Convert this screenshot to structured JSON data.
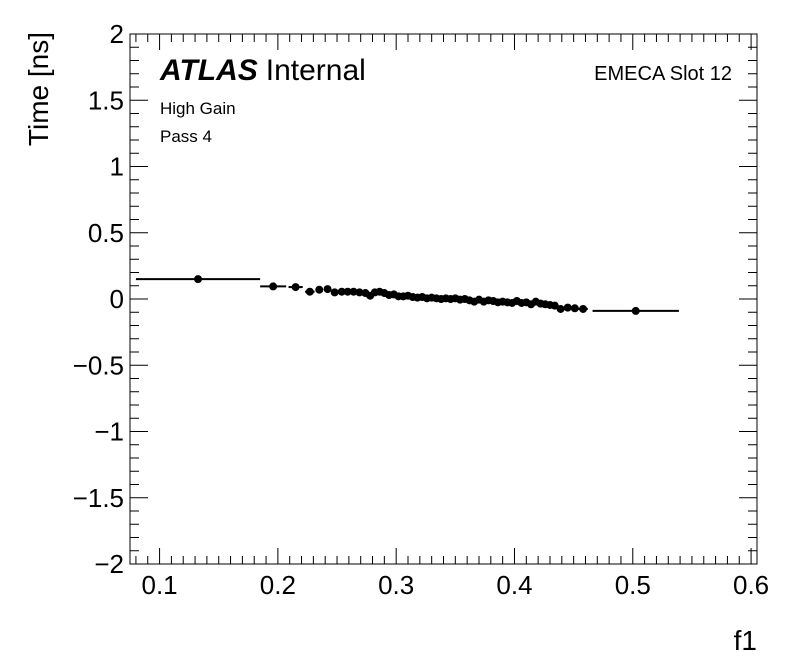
{
  "chart_data": {
    "type": "scatter",
    "title": "",
    "xlabel": "f1",
    "ylabel": "Time [ns]",
    "xlim": [
      0.075,
      0.605
    ],
    "ylim": [
      -2,
      2
    ],
    "x_ticks": [
      0.1,
      0.2,
      0.3,
      0.4,
      0.5,
      0.6
    ],
    "x_tick_labels": [
      "0.1",
      "0.2",
      "0.3",
      "0.4",
      "0.5",
      "0.6"
    ],
    "y_ticks": [
      2,
      1.5,
      1,
      0.5,
      0,
      -0.5,
      -1,
      -1.5,
      -2
    ],
    "y_tick_labels": [
      "2",
      "1.5",
      "1",
      "0.5",
      "0",
      "−0.5",
      "−1",
      "−1.5",
      "−2"
    ],
    "annotations": {
      "atlas": "ATLAS",
      "internal": "Internal",
      "gain": "High Gain",
      "pass": "Pass 4",
      "slot": "EMECA Slot 12"
    },
    "marker_color": "#000000",
    "grid": false,
    "series": [
      {
        "points": [
          {
            "x": 0.1325,
            "y": 0.15,
            "xerr": 0.0525
          },
          {
            "x": 0.196,
            "y": 0.095,
            "xerr": 0.011
          },
          {
            "x": 0.215,
            "y": 0.09,
            "xerr": 0.006
          },
          {
            "x": 0.227,
            "y": 0.055,
            "xerr": 0.004
          },
          {
            "x": 0.235,
            "y": 0.07,
            "xerr": 0.003
          },
          {
            "x": 0.242,
            "y": 0.075,
            "xerr": 0.003
          },
          {
            "x": 0.248,
            "y": 0.05,
            "xerr": 0.003
          },
          {
            "x": 0.254,
            "y": 0.055,
            "xerr": 0.003
          },
          {
            "x": 0.259,
            "y": 0.055,
            "xerr": 0.002
          },
          {
            "x": 0.264,
            "y": 0.055,
            "xerr": 0.002
          },
          {
            "x": 0.269,
            "y": 0.05,
            "xerr": 0.002
          },
          {
            "x": 0.274,
            "y": 0.045,
            "xerr": 0.002
          },
          {
            "x": 0.278,
            "y": 0.025,
            "xerr": 0.002
          },
          {
            "x": 0.282,
            "y": 0.05,
            "xerr": 0.002
          },
          {
            "x": 0.286,
            "y": 0.055,
            "xerr": 0.002
          },
          {
            "x": 0.29,
            "y": 0.045,
            "xerr": 0.002
          },
          {
            "x": 0.294,
            "y": 0.03,
            "xerr": 0.002
          },
          {
            "x": 0.298,
            "y": 0.035,
            "xerr": 0.002
          },
          {
            "x": 0.302,
            "y": 0.02,
            "xerr": 0.002
          },
          {
            "x": 0.306,
            "y": 0.02,
            "xerr": 0.002
          },
          {
            "x": 0.31,
            "y": 0.025,
            "xerr": 0.002
          },
          {
            "x": 0.314,
            "y": 0.015,
            "xerr": 0.002
          },
          {
            "x": 0.318,
            "y": 0.01,
            "xerr": 0.002
          },
          {
            "x": 0.322,
            "y": 0.015,
            "xerr": 0.002
          },
          {
            "x": 0.326,
            "y": 0.005,
            "xerr": 0.002
          },
          {
            "x": 0.33,
            "y": 0.01,
            "xerr": 0.002
          },
          {
            "x": 0.334,
            "y": 0.005,
            "xerr": 0.002
          },
          {
            "x": 0.338,
            "y": 0.0,
            "xerr": 0.002
          },
          {
            "x": 0.342,
            "y": 0.005,
            "xerr": 0.002
          },
          {
            "x": 0.346,
            "y": 0.0,
            "xerr": 0.002
          },
          {
            "x": 0.35,
            "y": 0.005,
            "xerr": 0.002
          },
          {
            "x": 0.354,
            "y": -0.005,
            "xerr": 0.002
          },
          {
            "x": 0.358,
            "y": 0.0,
            "xerr": 0.002
          },
          {
            "x": 0.362,
            "y": -0.01,
            "xerr": 0.002
          },
          {
            "x": 0.366,
            "y": -0.02,
            "xerr": 0.002
          },
          {
            "x": 0.37,
            "y": -0.005,
            "xerr": 0.002
          },
          {
            "x": 0.374,
            "y": -0.02,
            "xerr": 0.002
          },
          {
            "x": 0.378,
            "y": -0.01,
            "xerr": 0.002
          },
          {
            "x": 0.382,
            "y": -0.015,
            "xerr": 0.002
          },
          {
            "x": 0.386,
            "y": -0.025,
            "xerr": 0.002
          },
          {
            "x": 0.39,
            "y": -0.02,
            "xerr": 0.002
          },
          {
            "x": 0.394,
            "y": -0.025,
            "xerr": 0.002
          },
          {
            "x": 0.398,
            "y": -0.03,
            "xerr": 0.002
          },
          {
            "x": 0.402,
            "y": -0.015,
            "xerr": 0.002
          },
          {
            "x": 0.406,
            "y": -0.03,
            "xerr": 0.002
          },
          {
            "x": 0.41,
            "y": -0.025,
            "xerr": 0.002
          },
          {
            "x": 0.414,
            "y": -0.04,
            "xerr": 0.002
          },
          {
            "x": 0.418,
            "y": -0.02,
            "xerr": 0.002
          },
          {
            "x": 0.422,
            "y": -0.035,
            "xerr": 0.002
          },
          {
            "x": 0.426,
            "y": -0.04,
            "xerr": 0.002
          },
          {
            "x": 0.43,
            "y": -0.045,
            "xerr": 0.002
          },
          {
            "x": 0.434,
            "y": -0.05,
            "xerr": 0.002
          },
          {
            "x": 0.439,
            "y": -0.075,
            "xerr": 0.003
          },
          {
            "x": 0.445,
            "y": -0.065,
            "xerr": 0.003
          },
          {
            "x": 0.451,
            "y": -0.07,
            "xerr": 0.003
          },
          {
            "x": 0.458,
            "y": -0.075,
            "xerr": 0.004
          },
          {
            "x": 0.5025,
            "y": -0.09,
            "xerr": 0.0365
          }
        ]
      }
    ]
  }
}
